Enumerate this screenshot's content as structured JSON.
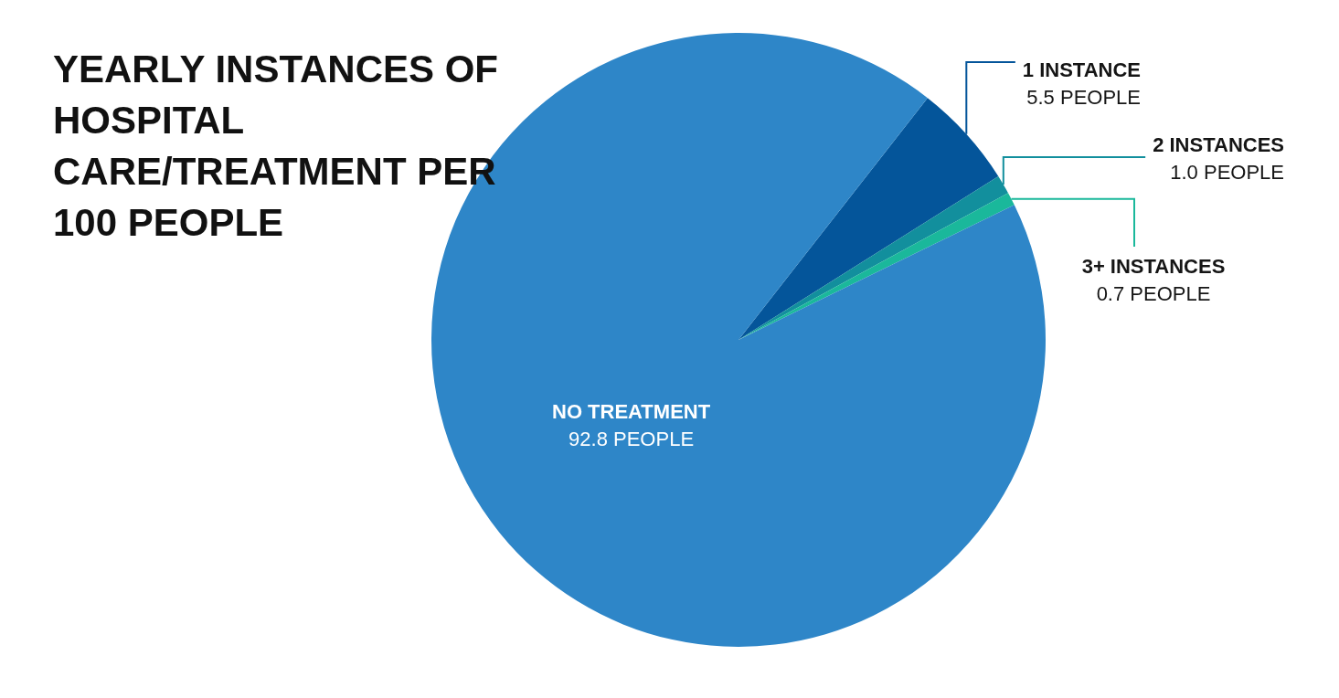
{
  "chart_data": {
    "type": "pie",
    "title": "YEARLY INSTANCES OF HOSPITAL CARE/TREATMENT PER 100 PEOPLE",
    "categories": [
      "1 INSTANCE",
      "2 INSTANCES",
      "3+ INSTANCES",
      "NO TREATMENT"
    ],
    "values": [
      5.5,
      1.0,
      0.7,
      92.8
    ],
    "value_labels": [
      "5.5 PEOPLE",
      "1.0 PEOPLE",
      "0.7 PEOPLE",
      "92.8 PEOPLE"
    ],
    "colors": [
      "#04559a",
      "#128f9d",
      "#1ab89b",
      "#2e86c8"
    ],
    "data_labels": true
  }
}
